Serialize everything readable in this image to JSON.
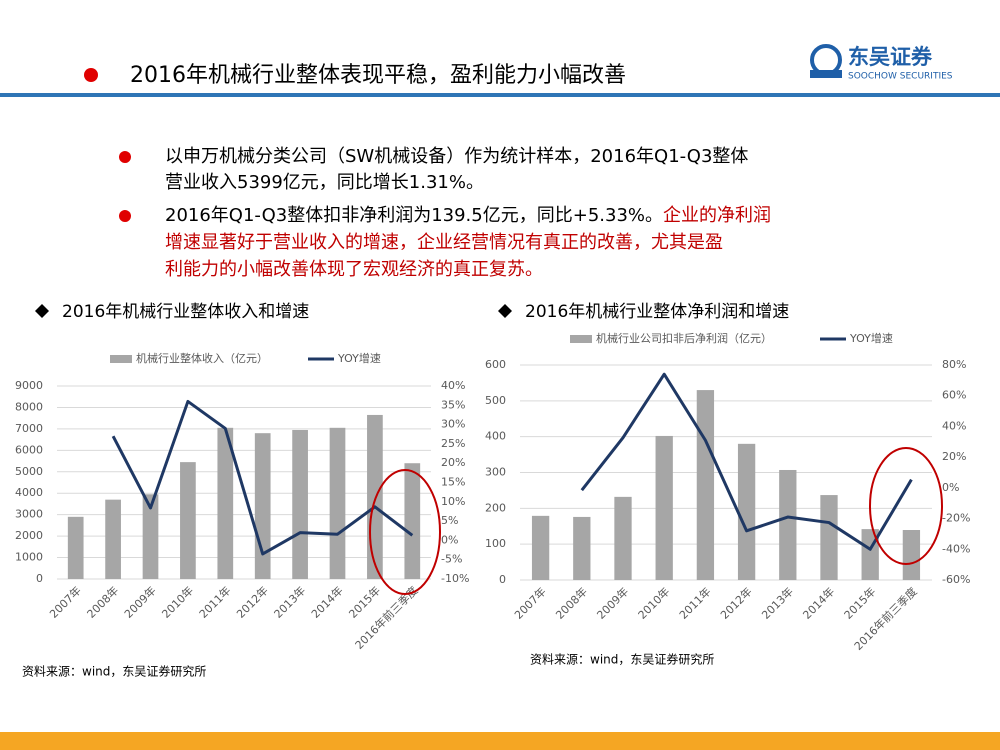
{
  "header": {
    "title": "2016年机械行业整体表现平稳，盈利能力小幅改善",
    "logo_cn": "东吴证券",
    "logo_en": "SOOCHOW SECURITIES"
  },
  "bullets": [
    {
      "lines": [
        [
          {
            "text": "以申万机械分类公司（SW机械设备）作为统计样本，2016年Q1-Q3整体",
            "color": "#000000"
          }
        ],
        [
          {
            "text": "营业收入5399亿元，同比增长1.31%。",
            "color": "#000000"
          }
        ]
      ]
    },
    {
      "lines": [
        [
          {
            "text": "2016年Q1-Q3整体扣非净利润为139.5亿元，同比+5.33%。",
            "color": "#000000"
          },
          {
            "text": "企业的净利润",
            "color": "#c00000"
          }
        ],
        [
          {
            "text": "增速显著好于营业收入的增速，企业经营情况有真正的改善，尤其是盈",
            "color": "#c00000"
          }
        ],
        [
          {
            "text": "利能力的小幅改善体现了宏观经济的真正复苏。",
            "color": "#c00000"
          }
        ]
      ]
    }
  ],
  "chart_data": [
    {
      "type": "combo",
      "title": "2016年机械行业整体收入和增速",
      "source": "资料来源：wind，东吴证券研究所",
      "categories": [
        "2007年",
        "2008年",
        "2009年",
        "2010年",
        "2011年",
        "2012年",
        "2013年",
        "2014年",
        "2015年",
        "2016年前三季度"
      ],
      "series": [
        {
          "name": "机械行业整体收入（亿元）",
          "type": "bar",
          "color": "#a6a6a6",
          "values": [
            2900,
            3700,
            3950,
            5450,
            7050,
            6800,
            6950,
            7050,
            7650,
            5399
          ]
        },
        {
          "name": "YOY增速",
          "type": "line",
          "axis": "y2",
          "color": "#1f3864",
          "values": [
            null,
            27,
            8.4,
            36,
            29,
            -3.5,
            2,
            1.6,
            8.7,
            1.31
          ]
        }
      ],
      "ylim": [
        0,
        9000
      ],
      "yticks": [
        0,
        1000,
        2000,
        3000,
        4000,
        5000,
        6000,
        7000,
        8000,
        9000
      ],
      "y2lim": [
        -10,
        40
      ],
      "y2ticks": [
        {
          "value": -10,
          "label": "-10%"
        },
        {
          "value": -5,
          "label": "-5%"
        },
        {
          "value": 0,
          "label": "0%"
        },
        {
          "value": 5,
          "label": "5%"
        },
        {
          "value": 10,
          "label": "10%"
        },
        {
          "value": 15,
          "label": "15%"
        },
        {
          "value": 20,
          "label": "20%"
        },
        {
          "value": 25,
          "label": "25%"
        },
        {
          "value": 30,
          "label": "30%"
        },
        {
          "value": 35,
          "label": "35%"
        },
        {
          "value": 40,
          "label": "40%"
        }
      ],
      "grid": true
    },
    {
      "type": "combo",
      "title": "2016年机械行业整体净利润和增速",
      "source": "资料来源：wind，东吴证券研究所",
      "categories": [
        "2007年",
        "2008年",
        "2009年",
        "2010年",
        "2011年",
        "2012年",
        "2013年",
        "2014年",
        "2015年",
        "2016年前三季度"
      ],
      "series": [
        {
          "name": "机械行业公司扣非后净利润（亿元）",
          "type": "bar",
          "color": "#a6a6a6",
          "values": [
            179,
            176,
            232,
            402,
            530,
            380,
            307,
            237,
            142,
            139.5
          ]
        },
        {
          "name": "YOY增速",
          "type": "line",
          "axis": "y2",
          "color": "#1f3864",
          "values": [
            null,
            -1.5,
            32.7,
            74,
            31,
            -28,
            -19,
            -22.6,
            -40,
            5.33
          ]
        }
      ],
      "ylim": [
        0,
        600
      ],
      "yticks": [
        0,
        100,
        200,
        300,
        400,
        500,
        600
      ],
      "y2lim": [
        -60,
        80
      ],
      "y2ticks": [
        {
          "value": -60,
          "label": "-60%"
        },
        {
          "value": -40,
          "label": "-40%"
        },
        {
          "value": -20,
          "label": "-20%"
        },
        {
          "value": 0,
          "label": "0%"
        },
        {
          "value": 20,
          "label": "20%"
        },
        {
          "value": 40,
          "label": "40%"
        },
        {
          "value": 60,
          "label": "60%"
        },
        {
          "value": 80,
          "label": "80%"
        }
      ],
      "grid": true
    }
  ]
}
